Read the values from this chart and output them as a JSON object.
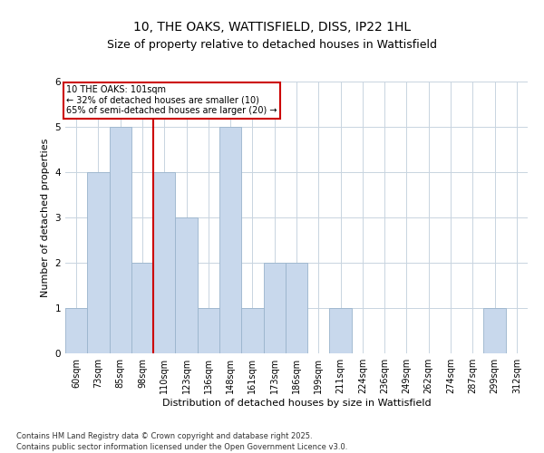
{
  "title_line1": "10, THE OAKS, WATTISFIELD, DISS, IP22 1HL",
  "title_line2": "Size of property relative to detached houses in Wattisfield",
  "xlabel": "Distribution of detached houses by size in Wattisfield",
  "ylabel": "Number of detached properties",
  "categories": [
    "60sqm",
    "73sqm",
    "85sqm",
    "98sqm",
    "110sqm",
    "123sqm",
    "136sqm",
    "148sqm",
    "161sqm",
    "173sqm",
    "186sqm",
    "199sqm",
    "211sqm",
    "224sqm",
    "236sqm",
    "249sqm",
    "262sqm",
    "274sqm",
    "287sqm",
    "299sqm",
    "312sqm"
  ],
  "values": [
    1,
    4,
    5,
    2,
    4,
    3,
    1,
    5,
    1,
    2,
    2,
    0,
    1,
    0,
    0,
    0,
    0,
    0,
    0,
    1,
    0
  ],
  "bar_color": "#c8d8ec",
  "bar_edge_color": "#9ab4cc",
  "red_line_x": 3.5,
  "annotation_text": "10 THE OAKS: 101sqm\n← 32% of detached houses are smaller (10)\n65% of semi-detached houses are larger (20) →",
  "annotation_box_color": "white",
  "annotation_box_edge_color": "#cc0000",
  "red_line_color": "#cc0000",
  "ylim": [
    0,
    6
  ],
  "yticks": [
    0,
    1,
    2,
    3,
    4,
    5,
    6
  ],
  "grid_color": "#c8d4e0",
  "footnote": "Contains HM Land Registry data © Crown copyright and database right 2025.\nContains public sector information licensed under the Open Government Licence v3.0.",
  "title_fontsize": 10,
  "subtitle_fontsize": 9,
  "label_fontsize": 8,
  "tick_fontsize": 7,
  "annotation_fontsize": 7,
  "footnote_fontsize": 6
}
